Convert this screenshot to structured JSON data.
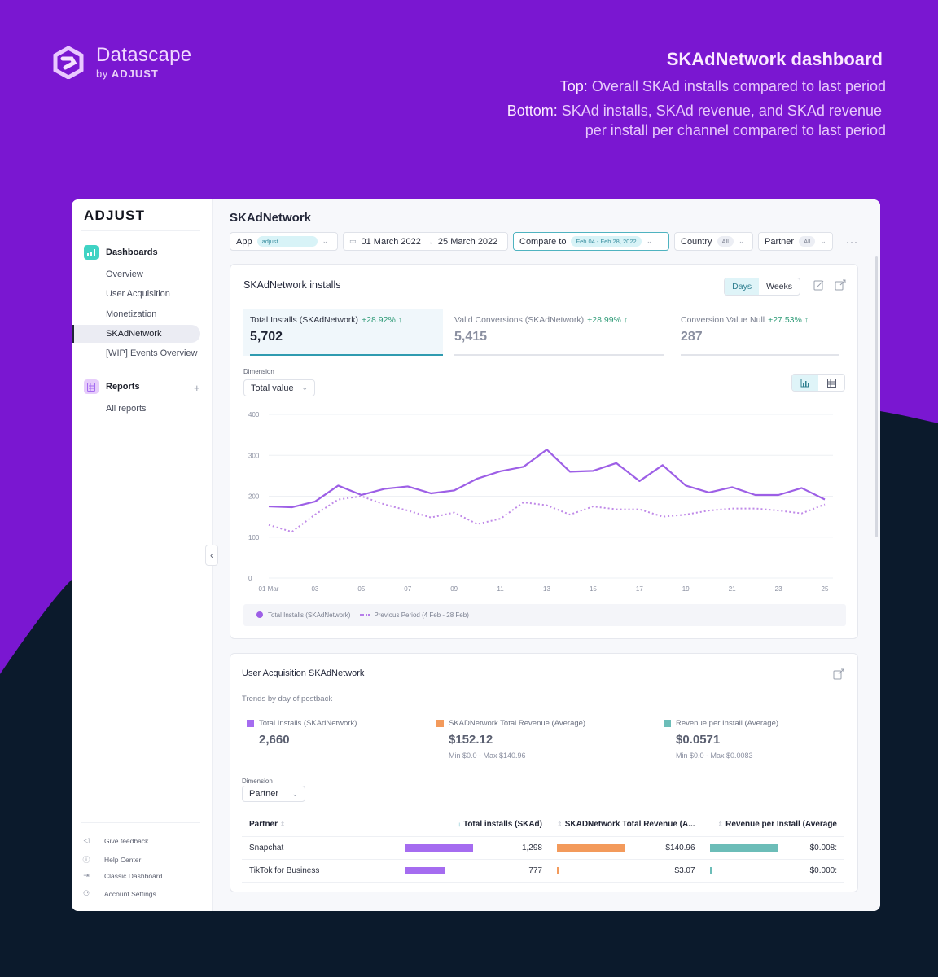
{
  "hero": {
    "brand_name": "Datascape",
    "brand_by": "by",
    "brand_company": "ADJUST",
    "title": "SKAdNetwork dashboard",
    "top_key": "Top:",
    "top_text": "Overall SKAd installs compared to last period",
    "bottom_key": "Bottom:",
    "bottom_text_1": "SKAd installs, SKAd revenue, and SKAd revenue",
    "bottom_text_2": "per install per channel compared to last period"
  },
  "colors": {
    "bg_purple": "#7a17d1",
    "bg_navy": "#0b1a2c",
    "accent_teal": "#2f9bb0",
    "series_purple": "#9d5fe6",
    "revenue_orange": "#f39a5b",
    "rpi_teal": "#6cbdb8",
    "positive_green": "#2f9b77"
  },
  "sidebar": {
    "logo": "ADJUST",
    "dashboards_label": "Dashboards",
    "dashboard_items": [
      "Overview",
      "User Acquisition",
      "Monetization",
      "SKAdNetwork",
      "[WIP] Events Overview"
    ],
    "active_item": "SKAdNetwork",
    "reports_label": "Reports",
    "reports_items": [
      "All reports"
    ],
    "footer": [
      {
        "label": "Give feedback",
        "icon": "megaphone-icon"
      },
      {
        "label": "Help Center",
        "icon": "help-circle-icon"
      },
      {
        "label": "Classic Dashboard",
        "icon": "exit-icon"
      },
      {
        "label": "Account Settings",
        "icon": "user-icon"
      }
    ]
  },
  "header": {
    "title": "SKAdNetwork",
    "filters": {
      "app_label": "App",
      "app_value": "adjust",
      "date_from": "01 March 2022",
      "date_arrow": "→",
      "date_to": "25 March 2022",
      "compare_label": "Compare to",
      "compare_value": "Feb 04 - Feb 28, 2022",
      "country_label": "Country",
      "country_value": "All",
      "partner_label": "Partner",
      "partner_value": "All",
      "more": "···"
    }
  },
  "installs_card": {
    "title": "SKAdNetwork installs",
    "granularity": [
      "Days",
      "Weeks"
    ],
    "granularity_selected": "Days",
    "metrics": [
      {
        "label": "Total Installs (SKAdNetwork)",
        "delta": "+28.92% ↑",
        "value": "5,702",
        "selected": true
      },
      {
        "label": "Valid Conversions (SKAdNetwork)",
        "delta": "+28.99% ↑",
        "value": "5,415",
        "selected": false
      },
      {
        "label": "Conversion Value Null",
        "delta": "+27.53% ↑",
        "value": "287",
        "selected": false
      }
    ],
    "dimension_label": "Dimension",
    "dimension_value": "Total value",
    "legend": {
      "current": "Total Installs (SKAdNetwork)",
      "previous": "Previous Period (4 Feb - 28 Feb)"
    }
  },
  "chart_data": {
    "type": "line",
    "title": "SKAdNetwork installs",
    "xlabel": "",
    "ylabel": "",
    "ylim": [
      0,
      400
    ],
    "yticks": [
      0,
      100,
      200,
      300,
      400
    ],
    "xtick_labels": [
      "01 Mar",
      "03",
      "05",
      "07",
      "09",
      "11",
      "13",
      "15",
      "17",
      "19",
      "21",
      "23",
      "25"
    ],
    "x": [
      "01",
      "02",
      "03",
      "04",
      "05",
      "06",
      "07",
      "08",
      "09",
      "10",
      "11",
      "12",
      "13",
      "14",
      "15",
      "16",
      "17",
      "18",
      "19",
      "20",
      "21",
      "22",
      "23",
      "24",
      "25"
    ],
    "series": [
      {
        "name": "Total Installs (SKAdNetwork)",
        "style": "solid",
        "color": "#9d5fe6",
        "values": [
          175,
          173,
          187,
          226,
          203,
          218,
          224,
          207,
          214,
          243,
          261,
          272,
          314,
          260,
          262,
          281,
          237,
          276,
          226,
          209,
          222,
          203,
          203,
          220,
          192
        ]
      },
      {
        "name": "Previous Period (4 Feb - 28 Feb)",
        "style": "dotted",
        "color": "#c08ae8",
        "values": [
          130,
          113,
          155,
          192,
          200,
          180,
          165,
          148,
          160,
          132,
          145,
          185,
          178,
          155,
          175,
          168,
          168,
          150,
          155,
          165,
          170,
          170,
          165,
          158,
          180
        ]
      }
    ],
    "grid": true,
    "legend_position": "bottom"
  },
  "ua_card": {
    "title": "User Acquisition SKAdNetwork",
    "subtitle": "Trends by day of postback",
    "kpis": [
      {
        "label": "Total Installs (SKAdNetwork)",
        "value": "2,660",
        "minmax": "",
        "color": "#a56cf0"
      },
      {
        "label": "SKADNetwork Total Revenue (Average)",
        "value": "$152.12",
        "minmax": "Min $0.0 - Max $140.96",
        "color": "#f39a5b"
      },
      {
        "label": "Revenue per Install (Average)",
        "value": "$0.0571",
        "minmax": "Min $0.0 - Max $0.0083",
        "color": "#6cbdb8"
      }
    ],
    "dimension_label": "Dimension",
    "dimension_value": "Partner",
    "table": {
      "columns": [
        "Partner",
        "Total installs (SKAd)",
        "SKADNetwork Total Revenue (A...",
        "Revenue per Install (Average"
      ],
      "rows": [
        {
          "partner": "Snapchat",
          "installs": "1,298",
          "installs_pct": 100,
          "revenue": "$140.96",
          "revenue_pct": 100,
          "rpi": "$0.008:",
          "rpi_pct": 100
        },
        {
          "partner": "TikTok for Business",
          "installs": "777",
          "installs_pct": 60,
          "revenue": "$3.07",
          "revenue_pct": 2.2,
          "rpi": "$0.000:",
          "rpi_pct": 4
        }
      ]
    }
  }
}
